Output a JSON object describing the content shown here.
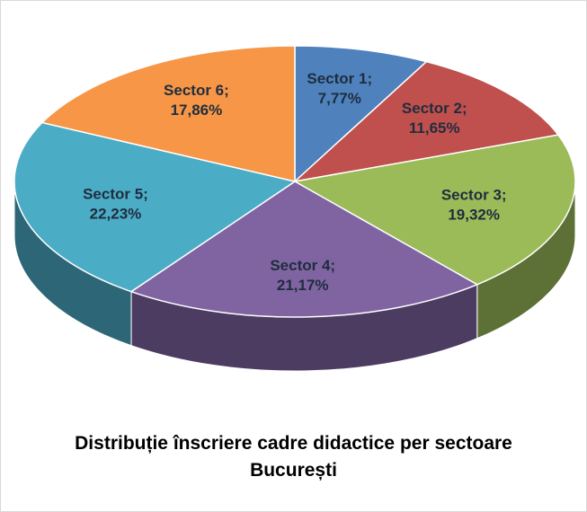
{
  "chart_data": {
    "type": "pie",
    "title": "Distribuție  înscriere cadre didactice per sectoare București",
    "categories": [
      "Sector 1;",
      "Sector 2;",
      "Sector 3;",
      "Sector 4;",
      "Sector 5;",
      "Sector 6;"
    ],
    "values": [
      7.77,
      11.65,
      19.32,
      21.17,
      22.23,
      17.86
    ],
    "value_labels": [
      "7,77%",
      "11,65%",
      "19,32%",
      "21,17%",
      "22,23%",
      "17,86%"
    ],
    "colors": [
      "#4f81bd",
      "#c0504d",
      "#9bbb59",
      "#8064a2",
      "#4bacc6",
      "#f79646"
    ]
  }
}
